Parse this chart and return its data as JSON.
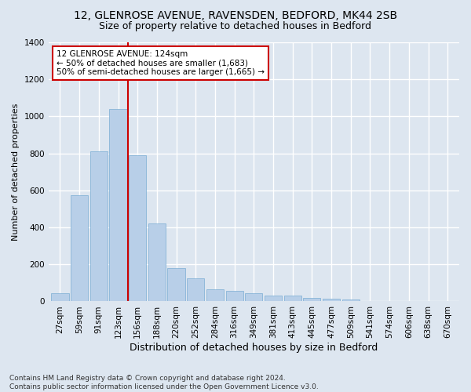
{
  "title1": "12, GLENROSE AVENUE, RAVENSDEN, BEDFORD, MK44 2SB",
  "title2": "Size of property relative to detached houses in Bedford",
  "xlabel": "Distribution of detached houses by size in Bedford",
  "ylabel": "Number of detached properties",
  "categories": [
    "27sqm",
    "59sqm",
    "91sqm",
    "123sqm",
    "156sqm",
    "188sqm",
    "220sqm",
    "252sqm",
    "284sqm",
    "316sqm",
    "349sqm",
    "381sqm",
    "413sqm",
    "445sqm",
    "477sqm",
    "509sqm",
    "541sqm",
    "574sqm",
    "606sqm",
    "638sqm",
    "670sqm"
  ],
  "values": [
    45,
    575,
    810,
    1040,
    790,
    420,
    180,
    125,
    65,
    55,
    45,
    30,
    30,
    20,
    15,
    10,
    0,
    0,
    0,
    0,
    0
  ],
  "bar_color": "#b8cfe8",
  "bar_edge_color": "#7aadd4",
  "vline_x": 3.5,
  "vline_color": "#cc0000",
  "annotation_line1": "12 GLENROSE AVENUE: 124sqm",
  "annotation_line2": "← 50% of detached houses are smaller (1,683)",
  "annotation_line3": "50% of semi-detached houses are larger (1,665) →",
  "annotation_box_color": "#ffffff",
  "annotation_box_edge": "#cc0000",
  "ylim": [
    0,
    1400
  ],
  "yticks": [
    0,
    200,
    400,
    600,
    800,
    1000,
    1200,
    1400
  ],
  "bg_color": "#dde6f0",
  "plot_bg_color": "#dde6f0",
  "footer": "Contains HM Land Registry data © Crown copyright and database right 2024.\nContains public sector information licensed under the Open Government Licence v3.0.",
  "title1_fontsize": 10,
  "title2_fontsize": 9,
  "xlabel_fontsize": 9,
  "ylabel_fontsize": 8,
  "tick_fontsize": 7.5,
  "annotation_fontsize": 7.5,
  "footer_fontsize": 6.5
}
